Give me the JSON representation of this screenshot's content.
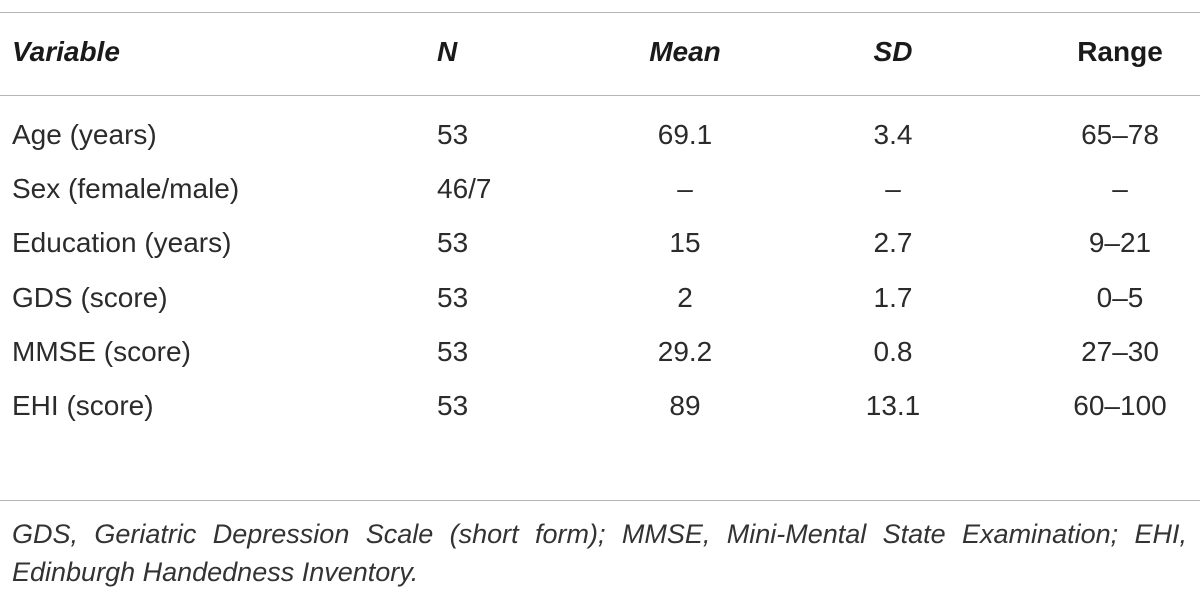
{
  "table": {
    "header": [
      "Variable",
      "N",
      "Mean",
      "SD",
      "Range"
    ],
    "rows": [
      [
        "Age (years)",
        "53",
        "69.1",
        "3.4",
        "65–78"
      ],
      [
        "Sex (female/male)",
        "46/7",
        "–",
        "–",
        "–"
      ],
      [
        "Education (years)",
        "53",
        "15",
        "2.7",
        "9–21"
      ],
      [
        "GDS (score)",
        "53",
        "2",
        "1.7",
        "0–5"
      ],
      [
        "MMSE (score)",
        "53",
        "29.2",
        "0.8",
        "27–30"
      ],
      [
        "EHI (score)",
        "53",
        "89",
        "13.1",
        "60–100"
      ]
    ]
  },
  "footnote": "GDS, Geriatric Depression Scale (short form); MMSE, Mini-Mental State Examination; EHI, Edinburgh Handedness Inventory."
}
